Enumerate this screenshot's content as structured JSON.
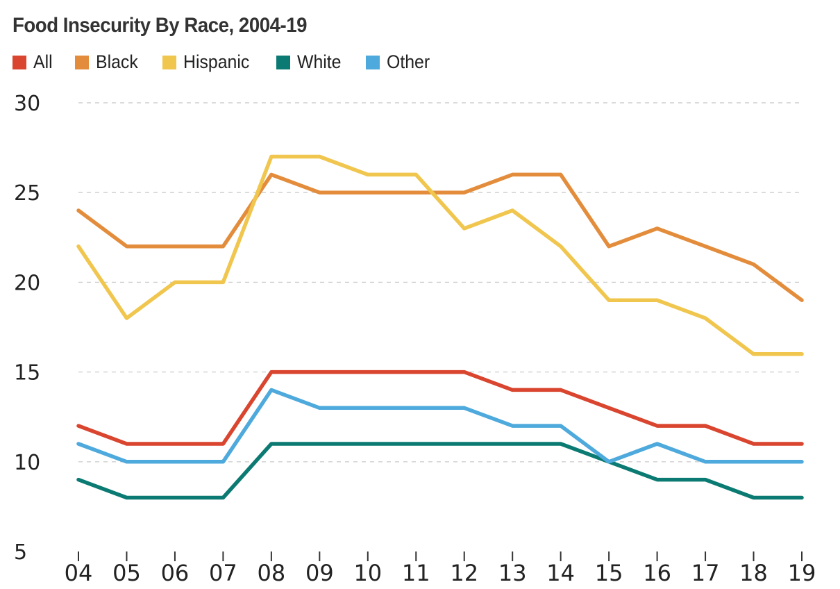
{
  "chart_data": {
    "type": "line",
    "title": "Food Insecurity By Race, 2004-19",
    "x": [
      "04",
      "05",
      "06",
      "07",
      "08",
      "09",
      "10",
      "11",
      "12",
      "13",
      "14",
      "15",
      "16",
      "17",
      "18",
      "19"
    ],
    "ylim": [
      5,
      30
    ],
    "yticks": [
      5,
      10,
      15,
      20,
      25,
      30
    ],
    "grid": true,
    "legend_position": "top-left",
    "series": [
      {
        "name": "All",
        "color": "#d9452e",
        "values": [
          12,
          11,
          11,
          11,
          15,
          15,
          15,
          15,
          15,
          14,
          14,
          13,
          12,
          12,
          11,
          11
        ]
      },
      {
        "name": "Black",
        "color": "#e38d3c",
        "values": [
          24,
          22,
          22,
          22,
          26,
          25,
          25,
          25,
          25,
          26,
          26,
          22,
          23,
          22,
          21,
          19
        ]
      },
      {
        "name": "Hispanic",
        "color": "#f0c64e",
        "values": [
          22,
          18,
          20,
          20,
          27,
          27,
          26,
          26,
          23,
          24,
          22,
          19,
          19,
          18,
          16,
          16
        ]
      },
      {
        "name": "White",
        "color": "#0a7a72",
        "values": [
          9,
          8,
          8,
          8,
          11,
          11,
          11,
          11,
          11,
          11,
          11,
          10,
          9,
          9,
          8,
          8
        ]
      },
      {
        "name": "Other",
        "color": "#4ea9dc",
        "values": [
          11,
          10,
          10,
          10,
          14,
          13,
          13,
          13,
          13,
          12,
          12,
          10,
          11,
          10,
          10,
          10
        ]
      }
    ]
  }
}
